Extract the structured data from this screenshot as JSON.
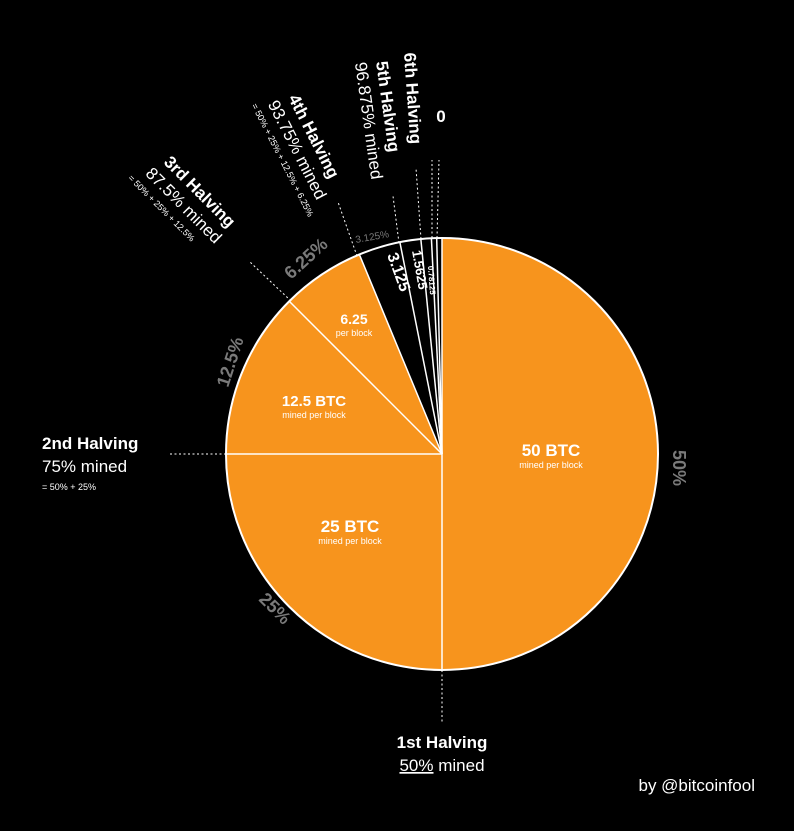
{
  "chart_data": {
    "type": "pie",
    "slices": [
      {
        "value": 50,
        "inner_label": "50 BTC",
        "inner_sublabel": "mined per block",
        "outer_label": "50%",
        "color": "#f7941d"
      },
      {
        "value": 25,
        "inner_label": "25 BTC",
        "inner_sublabel": "mined per block",
        "outer_label": "25%",
        "color": "#f7941d"
      },
      {
        "value": 12.5,
        "inner_label": "12.5 BTC",
        "inner_sublabel": "mined per block",
        "outer_label": "12.5%",
        "color": "#f7941d"
      },
      {
        "value": 6.25,
        "inner_label": "6.25",
        "inner_sublabel": "per block",
        "outer_label": "6.25%",
        "color": "#f7941d"
      },
      {
        "value": 3.125,
        "inner_label": "3.125",
        "inner_sublabel": "",
        "outer_label": "3.125%",
        "color": "#000000"
      },
      {
        "value": 1.5625,
        "inner_label": "1.5625",
        "inner_sublabel": "",
        "outer_label": "",
        "color": "#000000"
      },
      {
        "value": 0.78125,
        "inner_label": "0.78125",
        "inner_sublabel": "",
        "outer_label": "",
        "color": "#000000"
      },
      {
        "value": 0.390625,
        "inner_label": "",
        "inner_sublabel": "",
        "outer_label": "",
        "color": "#000000"
      },
      {
        "value": 0.390625,
        "inner_label": "",
        "inner_sublabel": "",
        "outer_label": "",
        "color": "#000000"
      }
    ],
    "annotations": [
      {
        "title": "1st Halving",
        "mined_pct": "50%",
        "mined_word": " mined",
        "formula": ""
      },
      {
        "title": "2nd Halving",
        "mined_pct": "75%",
        "mined_word": " mined",
        "formula": "= 50% + 25%"
      },
      {
        "title": "3rd Halving",
        "mined_pct": "87.5%",
        "mined_word": " mined",
        "formula": "= 50% + 25% + 12.5%"
      },
      {
        "title": "4th Halving",
        "mined_pct": "93.75%",
        "mined_word": " mined",
        "formula": "= 50% + 25% + 12.5% + 6.25%"
      },
      {
        "title": "5th Halving",
        "mined_pct": "96.875%",
        "mined_word": " mined",
        "formula": ""
      },
      {
        "title": "6th Halving",
        "mined_pct": "",
        "mined_word": "",
        "formula": ""
      },
      {
        "title": "0",
        "mined_pct": "",
        "mined_word": "",
        "formula": ""
      }
    ],
    "credit": "by @bitcoinfool",
    "colors": {
      "btc_orange": "#f7941d",
      "background": "#000000",
      "outline": "#ffffff",
      "percent_grey": "#7a7a7a"
    }
  }
}
